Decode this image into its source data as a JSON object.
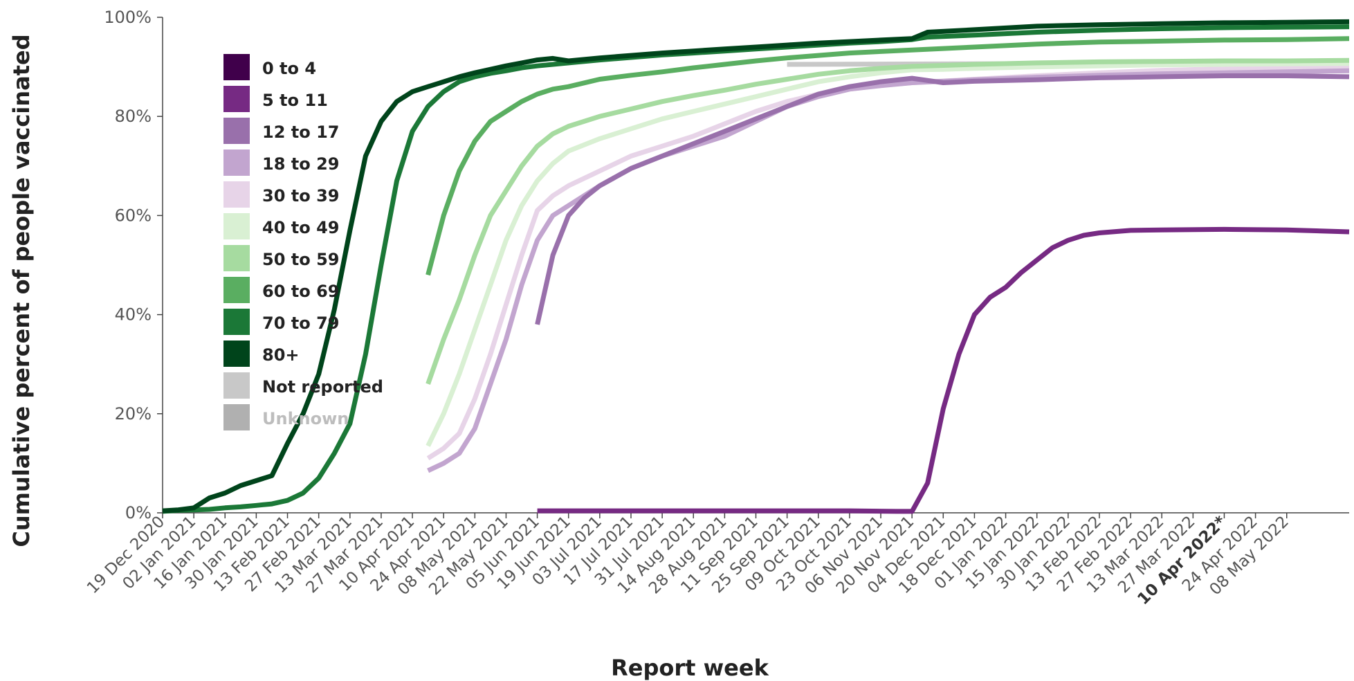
{
  "chart_data": {
    "type": "line",
    "title": "",
    "xlabel": "Report week",
    "ylabel": "Cumulative percent of people vaccinated",
    "ylim": [
      0,
      100
    ],
    "y_ticks": [
      "0%",
      "20%",
      "40%",
      "60%",
      "80%",
      "100%"
    ],
    "x_tick_labels": [
      "19 Dec 2020",
      "02 Jan 2021",
      "16 Jan 2021",
      "30 Jan 2021",
      "13 Feb 2021",
      "27 Feb 2021",
      "13 Mar 2021",
      "27 Mar 2021",
      "10 Apr 2021",
      "24 Apr 2021",
      "08 May 2021",
      "22 May 2021",
      "05 Jun 2021",
      "19 Jun 2021",
      "03 Jul 2021",
      "17 Jul 2021",
      "31 Jul 2021",
      "14 Aug 2021",
      "28 Aug 2021",
      "11 Sep 2021",
      "25 Sep 2021",
      "09 Oct 2021",
      "23 Oct 2021",
      "06 Nov 2021",
      "20 Nov 2021",
      "04 Dec 2021",
      "18 Dec 2021",
      "01 Jan 2022",
      "15 Jan 2022",
      "30 Jan 2022",
      "13 Feb 2022",
      "27 Feb 2022",
      "13 Mar 2022",
      "27 Mar 2022",
      "10 Apr 2022*",
      "24 Apr 2022",
      "08 May 2022"
    ],
    "highlighted_tick": "10 Apr 2022*",
    "grid": false,
    "legend_position": "top-left",
    "legend": [
      {
        "name": "0 to 4",
        "color": "#40004b"
      },
      {
        "name": "5 to 11",
        "color": "#762a83"
      },
      {
        "name": "12 to 17",
        "color": "#9970ab"
      },
      {
        "name": "18 to 29",
        "color": "#c2a5cf"
      },
      {
        "name": "30 to 39",
        "color": "#e7d4e8"
      },
      {
        "name": "40 to 49",
        "color": "#d9f0d3"
      },
      {
        "name": "50 to 59",
        "color": "#a6dba0"
      },
      {
        "name": "60 to 69",
        "color": "#5aae61"
      },
      {
        "name": "70 to 79",
        "color": "#1b7837"
      },
      {
        "name": "80+",
        "color": "#00441b"
      },
      {
        "name": "Not reported",
        "color": "#c8c8c8"
      },
      {
        "name": "Unknown",
        "color": "#b0b0b0"
      }
    ],
    "series": [
      {
        "name": "Not reported",
        "color": "#c8c8c8",
        "points": [
          [
            40,
            90.5
          ],
          [
            71,
            90.8
          ],
          [
            76,
            90.8
          ]
        ]
      },
      {
        "name": "30 to 39",
        "color": "#e7d4e8",
        "points": [
          [
            17,
            11
          ],
          [
            18,
            13
          ],
          [
            19,
            16
          ],
          [
            20,
            23
          ],
          [
            21,
            32
          ],
          [
            22,
            42
          ],
          [
            23,
            52
          ],
          [
            24,
            61
          ],
          [
            25,
            64
          ],
          [
            26,
            66
          ],
          [
            28,
            69
          ],
          [
            30,
            72
          ],
          [
            32,
            74
          ],
          [
            34,
            76
          ],
          [
            36,
            78.5
          ],
          [
            38,
            81
          ],
          [
            40,
            83
          ],
          [
            42,
            84.5
          ],
          [
            44,
            85.5
          ],
          [
            46,
            86.3
          ],
          [
            48,
            86.8
          ],
          [
            52,
            87.5
          ],
          [
            56,
            88.2
          ],
          [
            60,
            88.8
          ],
          [
            64,
            89.3
          ],
          [
            68,
            89.6
          ],
          [
            72,
            89.8
          ],
          [
            76,
            90
          ]
        ]
      },
      {
        "name": "18 to 29",
        "color": "#c2a5cf",
        "points": [
          [
            17,
            8.5
          ],
          [
            18,
            10
          ],
          [
            19,
            12
          ],
          [
            20,
            17
          ],
          [
            21,
            26
          ],
          [
            22,
            35
          ],
          [
            23,
            46
          ],
          [
            24,
            55
          ],
          [
            25,
            60
          ],
          [
            26,
            62
          ],
          [
            28,
            66
          ],
          [
            30,
            69.5
          ],
          [
            32,
            72
          ],
          [
            34,
            74
          ],
          [
            36,
            76
          ],
          [
            38,
            79
          ],
          [
            40,
            82
          ],
          [
            42,
            84
          ],
          [
            44,
            85.5
          ],
          [
            46,
            86.2
          ],
          [
            48,
            86.8
          ],
          [
            52,
            87.4
          ],
          [
            56,
            87.9
          ],
          [
            60,
            88.3
          ],
          [
            64,
            88.6
          ],
          [
            68,
            88.8
          ],
          [
            72,
            89
          ],
          [
            76,
            89.2
          ]
        ]
      },
      {
        "name": "12 to 17",
        "color": "#9970ab",
        "points": [
          [
            24,
            38
          ],
          [
            25,
            52
          ],
          [
            26,
            60
          ],
          [
            27,
            63.5
          ],
          [
            28,
            66
          ],
          [
            30,
            69.5
          ],
          [
            32,
            72
          ],
          [
            34,
            74.5
          ],
          [
            36,
            77
          ],
          [
            38,
            79.5
          ],
          [
            40,
            82
          ],
          [
            42,
            84.5
          ],
          [
            44,
            86
          ],
          [
            46,
            87
          ],
          [
            48,
            87.7
          ],
          [
            50,
            86.8
          ],
          [
            52,
            87.1
          ],
          [
            56,
            87.4
          ],
          [
            60,
            87.8
          ],
          [
            64,
            88
          ],
          [
            68,
            88.2
          ],
          [
            72,
            88.2
          ],
          [
            76,
            88
          ]
        ]
      },
      {
        "name": "40 to 49",
        "color": "#d9f0d3",
        "points": [
          [
            17,
            13.5
          ],
          [
            18,
            20
          ],
          [
            19,
            28
          ],
          [
            20,
            37
          ],
          [
            21,
            46
          ],
          [
            22,
            55
          ],
          [
            23,
            62
          ],
          [
            24,
            67
          ],
          [
            25,
            70.5
          ],
          [
            26,
            73
          ],
          [
            28,
            75.5
          ],
          [
            30,
            77.5
          ],
          [
            32,
            79.5
          ],
          [
            34,
            81
          ],
          [
            36,
            82.5
          ],
          [
            38,
            84
          ],
          [
            40,
            85.5
          ],
          [
            42,
            87
          ],
          [
            44,
            88
          ],
          [
            46,
            88.8
          ],
          [
            48,
            89.4
          ],
          [
            50,
            89.5
          ],
          [
            52,
            89.7
          ],
          [
            56,
            90
          ],
          [
            60,
            90.2
          ],
          [
            64,
            90.4
          ],
          [
            68,
            90.5
          ],
          [
            72,
            90.6
          ],
          [
            76,
            90.7
          ]
        ]
      },
      {
        "name": "50 to 59",
        "color": "#a6dba0",
        "points": [
          [
            17,
            26
          ],
          [
            18,
            35
          ],
          [
            19,
            43
          ],
          [
            20,
            52
          ],
          [
            21,
            60
          ],
          [
            22,
            65
          ],
          [
            23,
            70
          ],
          [
            24,
            74
          ],
          [
            25,
            76.5
          ],
          [
            26,
            78
          ],
          [
            28,
            80
          ],
          [
            30,
            81.5
          ],
          [
            32,
            83
          ],
          [
            34,
            84.2
          ],
          [
            36,
            85.3
          ],
          [
            38,
            86.5
          ],
          [
            40,
            87.5
          ],
          [
            42,
            88.5
          ],
          [
            44,
            89.2
          ],
          [
            46,
            89.7
          ],
          [
            48,
            90.1
          ],
          [
            50,
            90.3
          ],
          [
            52,
            90.5
          ],
          [
            56,
            90.8
          ],
          [
            60,
            91
          ],
          [
            64,
            91.1
          ],
          [
            68,
            91.2
          ],
          [
            72,
            91.2
          ],
          [
            76,
            91.3
          ]
        ]
      },
      {
        "name": "60 to 69",
        "color": "#5aae61",
        "points": [
          [
            17,
            48
          ],
          [
            18,
            60
          ],
          [
            19,
            69
          ],
          [
            20,
            75
          ],
          [
            21,
            79
          ],
          [
            22,
            81
          ],
          [
            23,
            83
          ],
          [
            24,
            84.5
          ],
          [
            25,
            85.5
          ],
          [
            26,
            86
          ],
          [
            28,
            87.5
          ],
          [
            30,
            88.3
          ],
          [
            32,
            89
          ],
          [
            34,
            89.8
          ],
          [
            36,
            90.5
          ],
          [
            38,
            91.2
          ],
          [
            40,
            91.8
          ],
          [
            42,
            92.3
          ],
          [
            44,
            92.8
          ],
          [
            46,
            93.1
          ],
          [
            48,
            93.4
          ],
          [
            50,
            93.7
          ],
          [
            52,
            94
          ],
          [
            56,
            94.6
          ],
          [
            60,
            95
          ],
          [
            64,
            95.2
          ],
          [
            68,
            95.4
          ],
          [
            72,
            95.5
          ],
          [
            76,
            95.7
          ]
        ]
      },
      {
        "name": "70 to 79",
        "color": "#1b7837",
        "points": [
          [
            0,
            0.3
          ],
          [
            1,
            0.5
          ],
          [
            2,
            0.6
          ],
          [
            3,
            0.7
          ],
          [
            4,
            1
          ],
          [
            5,
            1.2
          ],
          [
            6,
            1.5
          ],
          [
            7,
            1.8
          ],
          [
            8,
            2.5
          ],
          [
            9,
            4
          ],
          [
            10,
            7
          ],
          [
            11,
            12
          ],
          [
            12,
            18
          ],
          [
            13,
            32
          ],
          [
            14,
            50
          ],
          [
            15,
            67
          ],
          [
            16,
            77
          ],
          [
            17,
            82
          ],
          [
            18,
            85
          ],
          [
            19,
            87
          ],
          [
            20,
            88
          ],
          [
            21,
            88.7
          ],
          [
            22,
            89.2
          ],
          [
            23,
            89.8
          ],
          [
            24,
            90.2
          ],
          [
            26,
            90.8
          ],
          [
            28,
            91.4
          ],
          [
            30,
            91.9
          ],
          [
            32,
            92.4
          ],
          [
            34,
            92.8
          ],
          [
            36,
            93.2
          ],
          [
            38,
            93.6
          ],
          [
            40,
            94
          ],
          [
            42,
            94.4
          ],
          [
            44,
            94.8
          ],
          [
            46,
            95.1
          ],
          [
            48,
            95.5
          ],
          [
            49,
            96
          ],
          [
            52,
            96.4
          ],
          [
            56,
            97
          ],
          [
            60,
            97.4
          ],
          [
            64,
            97.7
          ],
          [
            68,
            97.9
          ],
          [
            72,
            98
          ],
          [
            76,
            98.1
          ]
        ]
      },
      {
        "name": "80+",
        "color": "#00441b",
        "points": [
          [
            0,
            0.4
          ],
          [
            1,
            0.6
          ],
          [
            2,
            1
          ],
          [
            3,
            3
          ],
          [
            4,
            4
          ],
          [
            5,
            5.5
          ],
          [
            6,
            6.5
          ],
          [
            7,
            7.5
          ],
          [
            8,
            14
          ],
          [
            9,
            20
          ],
          [
            10,
            28
          ],
          [
            11,
            41
          ],
          [
            12,
            57
          ],
          [
            13,
            72
          ],
          [
            14,
            79
          ],
          [
            15,
            83
          ],
          [
            16,
            85
          ],
          [
            17,
            86
          ],
          [
            18,
            87
          ],
          [
            19,
            88
          ],
          [
            20,
            88.8
          ],
          [
            21,
            89.5
          ],
          [
            22,
            90.2
          ],
          [
            23,
            90.8
          ],
          [
            24,
            91.4
          ],
          [
            25,
            91.7
          ],
          [
            26,
            91.2
          ],
          [
            28,
            91.8
          ],
          [
            30,
            92.3
          ],
          [
            32,
            92.8
          ],
          [
            34,
            93.2
          ],
          [
            36,
            93.6
          ],
          [
            38,
            94
          ],
          [
            40,
            94.4
          ],
          [
            42,
            94.8
          ],
          [
            44,
            95.1
          ],
          [
            46,
            95.4
          ],
          [
            48,
            95.7
          ],
          [
            49,
            97
          ],
          [
            52,
            97.5
          ],
          [
            56,
            98.2
          ],
          [
            60,
            98.5
          ],
          [
            64,
            98.7
          ],
          [
            68,
            98.9
          ],
          [
            72,
            99
          ],
          [
            76,
            99.1
          ]
        ]
      },
      {
        "name": "5 to 11",
        "color": "#762a83",
        "points": [
          [
            24,
            0.4
          ],
          [
            28,
            0.4
          ],
          [
            32,
            0.4
          ],
          [
            36,
            0.4
          ],
          [
            40,
            0.4
          ],
          [
            44,
            0.4
          ],
          [
            47,
            0.3
          ],
          [
            48,
            0.3
          ],
          [
            49,
            6
          ],
          [
            50,
            21
          ],
          [
            51,
            32
          ],
          [
            52,
            40
          ],
          [
            53,
            43.5
          ],
          [
            54,
            45.5
          ],
          [
            55,
            48.5
          ],
          [
            56,
            51
          ],
          [
            57,
            53.5
          ],
          [
            58,
            55
          ],
          [
            59,
            56
          ],
          [
            60,
            56.5
          ],
          [
            62,
            57
          ],
          [
            64,
            57.1
          ],
          [
            68,
            57.2
          ],
          [
            72,
            57.1
          ],
          [
            76,
            56.7
          ]
        ]
      }
    ]
  }
}
